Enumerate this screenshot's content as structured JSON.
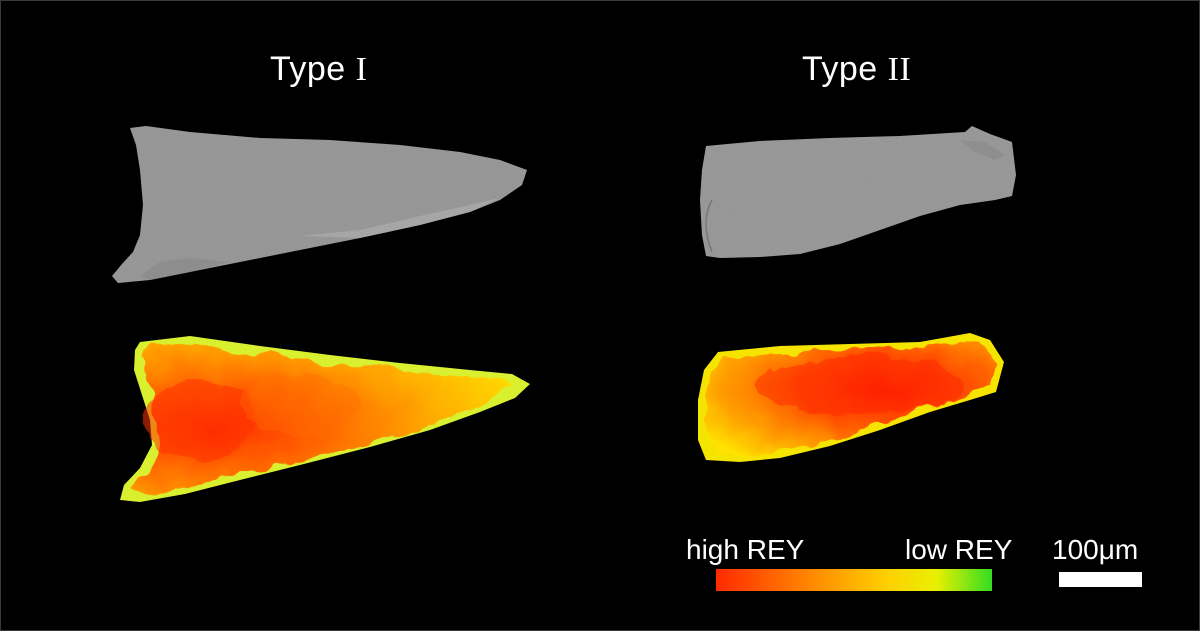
{
  "titles": {
    "left_prefix": "Type ",
    "left_numeral": "I",
    "right_prefix": "Type ",
    "right_numeral": "II"
  },
  "legend": {
    "high_label": "high REY",
    "low_label": "low REY",
    "colors": {
      "high": "#ff2a00",
      "mid": "#ffd000",
      "low": "#33dd22"
    }
  },
  "scale_bar": {
    "label": "100μm"
  },
  "images": {
    "sem_color": "#9a9a9a",
    "background": "#000000"
  }
}
